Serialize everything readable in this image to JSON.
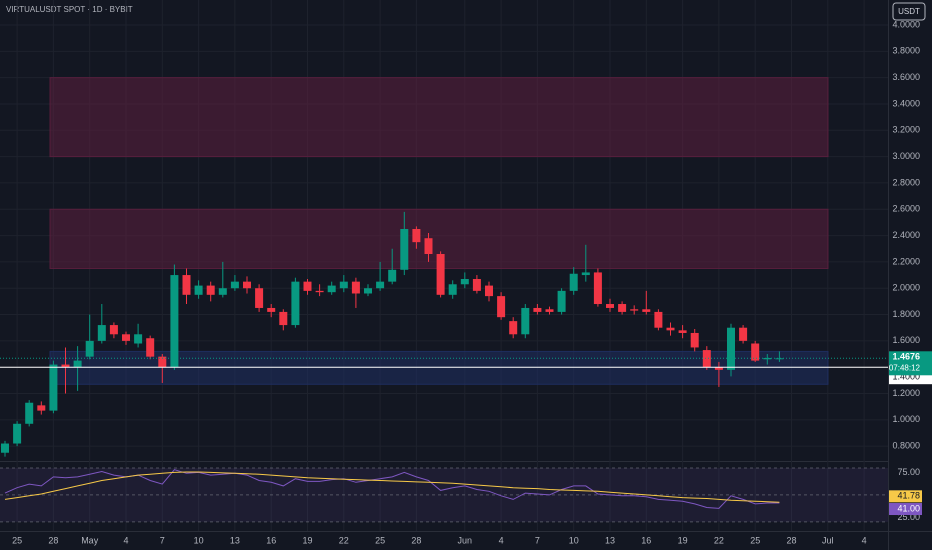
{
  "header": {
    "symbol": "VIRTUALUSDT SPOT · 1D · BYBIT",
    "currency": "USDT"
  },
  "chart_data": [
    {
      "type": "candlestick",
      "categories": [
        null,
        "25",
        null,
        null,
        "28",
        null,
        null,
        "May",
        null,
        null,
        "4",
        null,
        null,
        "7",
        null,
        null,
        "10",
        null,
        null,
        "13",
        null,
        null,
        "16",
        null,
        null,
        "19",
        null,
        null,
        "22",
        null,
        null,
        "25",
        null,
        null,
        "28",
        null,
        null,
        null,
        "Jun",
        null,
        null,
        "4",
        null,
        null,
        "7",
        null,
        null,
        "10",
        null,
        null,
        "13",
        null,
        null,
        "16",
        null,
        null,
        "19",
        null,
        null,
        "22",
        null,
        null,
        "25",
        null,
        null,
        "28",
        null,
        null,
        "Jul",
        null,
        null,
        "4"
      ],
      "open": [
        0.75,
        0.82,
        0.97,
        1.11,
        1.07,
        1.42,
        1.4,
        1.48,
        1.6,
        1.72,
        1.65,
        1.58,
        1.62,
        1.48,
        1.4,
        2.1,
        1.95,
        2.02,
        1.95,
        2.0,
        2.05,
        2.0,
        1.85,
        1.82,
        1.72,
        2.05,
        1.98,
        1.97,
        2.0,
        2.05,
        1.96,
        2.0,
        2.05,
        2.14,
        2.45,
        2.38,
        2.26,
        1.95,
        2.03,
        2.07,
        2.02,
        1.94,
        1.75,
        1.65,
        1.85,
        1.84,
        1.82,
        1.98,
        2.1,
        2.12,
        1.88,
        1.88,
        1.84,
        1.84,
        1.82,
        1.7,
        1.68,
        1.66,
        1.53,
        1.4,
        1.38,
        1.7,
        1.58,
        1.46,
        1.46,
        null,
        null,
        null,
        null,
        null,
        null,
        null
      ],
      "high": [
        0.84,
        0.99,
        1.15,
        1.14,
        1.45,
        1.55,
        1.56,
        1.8,
        1.88,
        1.74,
        1.67,
        1.73,
        1.64,
        1.5,
        2.18,
        2.15,
        2.06,
        2.05,
        2.2,
        2.1,
        2.09,
        2.03,
        1.88,
        1.84,
        2.08,
        2.07,
        2.03,
        2.05,
        2.1,
        2.08,
        2.03,
        2.2,
        2.3,
        2.58,
        2.47,
        2.42,
        2.28,
        2.06,
        2.12,
        2.1,
        2.05,
        1.97,
        1.78,
        1.88,
        1.88,
        1.86,
        2.0,
        2.16,
        2.33,
        2.15,
        1.92,
        1.9,
        1.87,
        1.98,
        1.84,
        1.74,
        1.72,
        1.69,
        1.56,
        1.44,
        1.73,
        1.72,
        1.6,
        1.5,
        1.52,
        null,
        null,
        null,
        null,
        null,
        null,
        null
      ],
      "low": [
        0.72,
        0.8,
        0.95,
        1.04,
        1.05,
        1.2,
        1.22,
        1.46,
        1.58,
        1.62,
        1.57,
        1.55,
        1.46,
        1.28,
        1.38,
        1.88,
        1.92,
        1.9,
        1.93,
        1.98,
        1.96,
        1.82,
        1.78,
        1.68,
        1.7,
        1.95,
        1.94,
        1.95,
        1.97,
        1.85,
        1.94,
        1.98,
        2.03,
        2.1,
        2.3,
        2.2,
        1.93,
        1.92,
        2.0,
        1.96,
        1.9,
        1.76,
        1.62,
        1.62,
        1.8,
        1.8,
        1.8,
        1.95,
        2.05,
        1.86,
        1.82,
        1.8,
        1.8,
        1.8,
        1.68,
        1.64,
        1.62,
        1.52,
        1.38,
        1.25,
        1.33,
        1.58,
        1.44,
        1.42,
        1.44,
        null,
        null,
        null,
        null,
        null,
        null,
        null
      ],
      "close": [
        0.82,
        0.97,
        1.13,
        1.07,
        1.42,
        1.4,
        1.45,
        1.6,
        1.72,
        1.65,
        1.6,
        1.65,
        1.48,
        1.4,
        2.1,
        1.95,
        2.02,
        1.95,
        2.0,
        2.05,
        2.0,
        1.85,
        1.82,
        1.72,
        2.05,
        1.98,
        1.97,
        2.02,
        2.05,
        1.96,
        2.0,
        2.05,
        2.14,
        2.45,
        2.35,
        2.26,
        1.95,
        2.03,
        2.07,
        1.98,
        1.94,
        1.78,
        1.65,
        1.85,
        1.82,
        1.82,
        1.98,
        2.11,
        2.12,
        1.88,
        1.85,
        1.82,
        1.83,
        1.82,
        1.7,
        1.68,
        1.66,
        1.55,
        1.4,
        1.38,
        1.7,
        1.6,
        1.45,
        1.47,
        1.4676,
        null,
        null,
        null,
        null,
        null,
        null,
        null
      ],
      "up_color": "#089981",
      "down_color": "#f23645",
      "ylim": [
        0.71,
        4.19
      ],
      "yticks": [
        {
          "value": 0.8,
          "label": "0.8000"
        },
        {
          "value": 1.0,
          "label": "1.0000"
        },
        {
          "value": 1.2,
          "label": "1.2000"
        },
        {
          "value": 1.4,
          "label": "1.4000"
        },
        {
          "value": 1.6,
          "label": "1.6000"
        },
        {
          "value": 1.8,
          "label": "1.8000"
        },
        {
          "value": 2.0,
          "label": "2.0000"
        },
        {
          "value": 2.2,
          "label": "2.2000"
        },
        {
          "value": 2.4,
          "label": "2.4000"
        },
        {
          "value": 2.6,
          "label": "2.6000"
        },
        {
          "value": 2.8,
          "label": "2.8000"
        },
        {
          "value": 3.0,
          "label": "3.0000"
        },
        {
          "value": 3.2,
          "label": "3.2000"
        },
        {
          "value": 3.4,
          "label": "3.4000"
        },
        {
          "value": 3.6,
          "label": "3.6000"
        },
        {
          "value": 3.8,
          "label": "3.8000"
        },
        {
          "value": 4.0,
          "label": "4.0000"
        }
      ],
      "grid": true,
      "zones": [
        {
          "from": 3.0,
          "to": 3.6,
          "color": "#5c1f3e"
        },
        {
          "from": 2.15,
          "to": 2.6,
          "color": "#5c1f3e"
        },
        {
          "from": 1.27,
          "to": 1.52,
          "color": "#1f2f63"
        }
      ],
      "hline": {
        "value": 1.4,
        "label": "1.4000"
      },
      "last_price": {
        "value": 1.4676,
        "label": "1.4676"
      },
      "countdown": "07:48:12"
    },
    {
      "type": "line",
      "series": [
        {
          "color": "#7e57c2",
          "values": [
            52,
            58,
            62,
            60,
            70,
            69,
            70,
            73,
            76,
            72,
            70,
            72,
            66,
            62,
            78,
            74,
            75,
            72,
            73,
            74,
            72,
            66,
            64,
            60,
            68,
            65,
            65,
            67,
            68,
            64,
            66,
            68,
            70,
            75,
            70,
            66,
            55,
            58,
            60,
            56,
            54,
            49,
            45,
            52,
            51,
            50,
            56,
            60,
            60,
            51,
            50,
            49,
            49,
            48,
            45,
            44,
            43,
            40,
            36,
            35,
            49,
            45,
            40,
            41,
            41,
            null,
            null,
            null,
            null,
            null,
            null,
            null
          ],
          "value_labels": [
            null,
            null,
            null,
            null,
            null,
            null,
            null,
            null,
            null,
            null,
            null,
            null,
            null,
            null,
            null,
            null,
            null,
            null,
            null,
            null,
            null,
            null,
            null,
            null,
            null,
            null,
            null,
            null,
            null,
            null,
            null,
            null,
            null,
            null,
            null,
            null,
            null,
            null,
            null,
            null,
            null,
            null,
            null,
            null,
            null,
            null,
            null,
            null,
            null,
            null,
            null,
            null,
            null,
            null,
            null,
            null,
            null,
            null,
            null,
            null,
            null,
            null,
            null,
            null,
            "41.00",
            null,
            null,
            null,
            null,
            null,
            null,
            null
          ]
        },
        {
          "color": "#f7c948",
          "values": [
            45,
            47,
            49,
            51,
            54,
            57,
            60,
            63,
            66,
            68,
            70,
            72,
            73,
            74,
            75,
            75.5,
            75.5,
            75,
            74.5,
            74,
            73.5,
            73,
            72,
            71,
            70,
            69,
            68.5,
            68,
            67.5,
            67,
            66.5,
            66,
            65.5,
            65,
            64.5,
            64,
            63.5,
            63,
            62,
            61,
            60,
            59,
            58,
            57.5,
            57,
            56,
            55.5,
            55,
            54.5,
            54,
            53,
            52,
            51,
            50,
            49,
            48,
            47,
            46.5,
            46,
            45,
            44,
            43.5,
            43,
            42.5,
            41.78,
            null,
            null,
            null,
            null,
            null,
            null,
            null
          ],
          "value_labels": [
            null,
            null,
            null,
            null,
            null,
            null,
            null,
            null,
            null,
            null,
            null,
            null,
            null,
            null,
            null,
            null,
            null,
            null,
            null,
            null,
            null,
            null,
            null,
            null,
            null,
            null,
            null,
            null,
            null,
            null,
            null,
            null,
            null,
            null,
            null,
            null,
            null,
            null,
            null,
            null,
            null,
            null,
            null,
            null,
            null,
            null,
            null,
            null,
            null,
            null,
            null,
            null,
            null,
            null,
            null,
            null,
            null,
            null,
            null,
            null,
            null,
            null,
            null,
            null,
            "41.78",
            null,
            null,
            null,
            null,
            null,
            null,
            null
          ]
        }
      ],
      "ylim": [
        11,
        85.5
      ],
      "yticks": [
        {
          "value": 25,
          "label": "25.00"
        },
        {
          "value": 75,
          "label": "75.00"
        }
      ],
      "levels": [
        80,
        50,
        20
      ]
    }
  ]
}
